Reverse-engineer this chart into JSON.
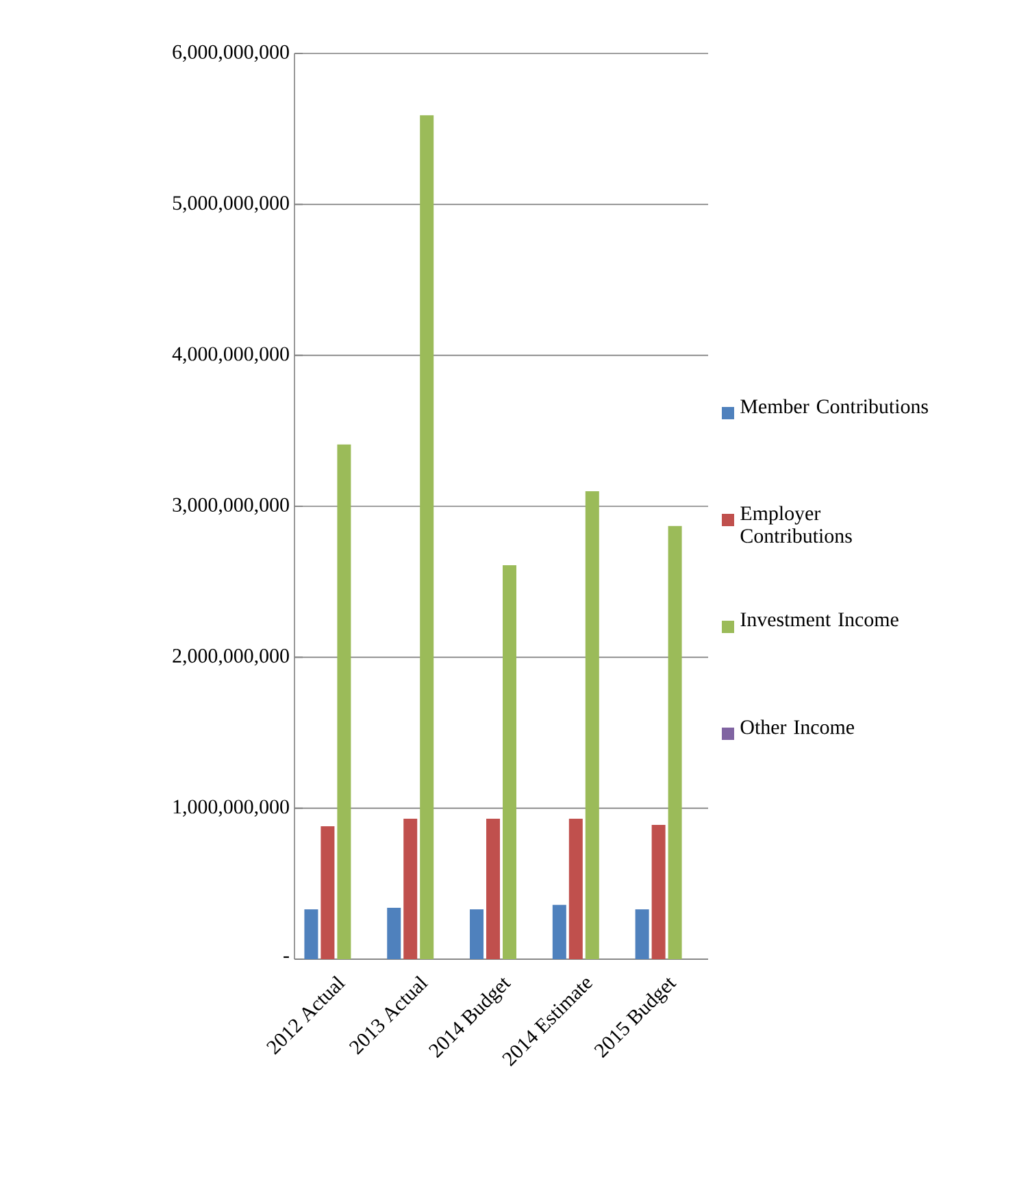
{
  "chart_data": {
    "type": "bar",
    "categories": [
      "2012 Actual",
      "2013 Actual",
      "2014 Budget",
      "2014 Estimate",
      "2015 Budget"
    ],
    "series": [
      {
        "name": "Member Contributions",
        "color": "#4f81bd",
        "values": [
          330000000,
          340000000,
          330000000,
          360000000,
          330000000
        ]
      },
      {
        "name": "Employer Contributions",
        "color": "#c0504d",
        "values": [
          880000000,
          930000000,
          930000000,
          930000000,
          890000000
        ]
      },
      {
        "name": "Investment Income",
        "color": "#9bbb59",
        "values": [
          3410000000,
          5590000000,
          2610000000,
          3100000000,
          2870000000
        ]
      },
      {
        "name": "Other Income",
        "color": "#8064a2",
        "values": [
          0,
          0,
          0,
          0,
          0
        ]
      }
    ],
    "ylim": [
      0,
      6000000000
    ],
    "yticks": [
      {
        "value": 0,
        "label": "-"
      },
      {
        "value": 1000000000,
        "label": "1,000,000,000"
      },
      {
        "value": 2000000000,
        "label": "2,000,000,000"
      },
      {
        "value": 3000000000,
        "label": "3,000,000,000"
      },
      {
        "value": 4000000000,
        "label": "4,000,000,000"
      },
      {
        "value": 5000000000,
        "label": "5,000,000,000"
      },
      {
        "value": 6000000000,
        "label": "6,000,000,000"
      }
    ],
    "grid": "y",
    "legend": "right"
  }
}
